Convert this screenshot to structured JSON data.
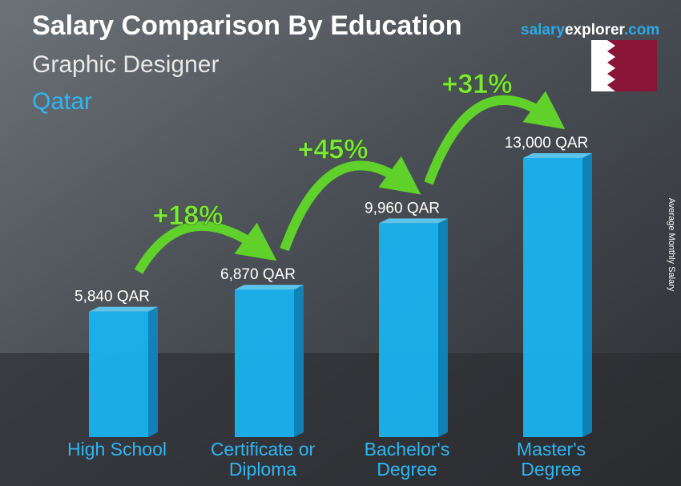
{
  "chart_data": {
    "type": "bar",
    "title": "Salary Comparison By Education",
    "subtitle": "Graphic Designer",
    "country": "Qatar",
    "brand": [
      "salary",
      "explorer",
      ".com"
    ],
    "y_label": "Average Monthly Salary",
    "categories": [
      "High School",
      "Certificate or\nDiploma",
      "Bachelor's\nDegree",
      "Master's\nDegree"
    ],
    "values": [
      5840,
      6870,
      9960,
      13000
    ],
    "value_labels": [
      "5,840 QAR",
      "6,870 QAR",
      "9,960 QAR",
      "13,000 QAR"
    ],
    "annotations": [
      "+18%",
      "+45%",
      "+31%"
    ],
    "color": "#1ab2ef"
  }
}
